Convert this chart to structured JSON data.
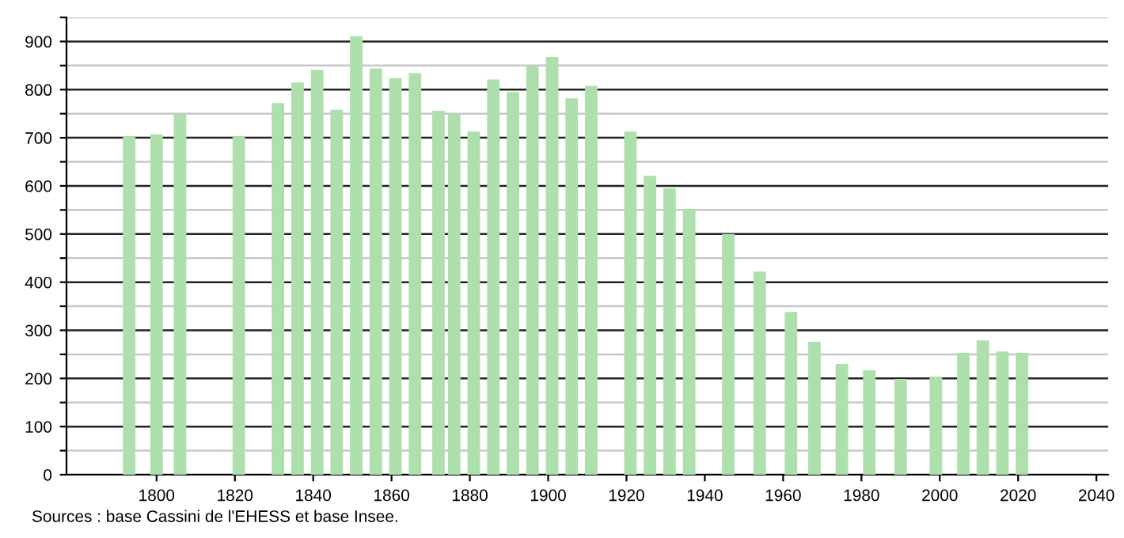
{
  "chart_data": {
    "type": "bar",
    "x": [
      1793,
      1800,
      1806,
      1821,
      1831,
      1836,
      1841,
      1846,
      1851,
      1856,
      1861,
      1866,
      1872,
      1876,
      1881,
      1886,
      1891,
      1896,
      1901,
      1906,
      1911,
      1921,
      1926,
      1931,
      1936,
      1946,
      1954,
      1962,
      1968,
      1975,
      1982,
      1990,
      1999,
      2006,
      2011,
      2016,
      2021
    ],
    "values": [
      703,
      707,
      749,
      703,
      772,
      815,
      841,
      758,
      911,
      844,
      824,
      834,
      756,
      749,
      713,
      821,
      795,
      849,
      868,
      782,
      808,
      713,
      621,
      595,
      551,
      500,
      422,
      338,
      276,
      230,
      217,
      199,
      204,
      253,
      279,
      256,
      253
    ],
    "color": "#aee0ae",
    "xlim": [
      1777,
      2043
    ],
    "xticks": [
      1800,
      1820,
      1840,
      1860,
      1880,
      1900,
      1920,
      1940,
      1960,
      1980,
      2000,
      2020,
      2040
    ],
    "ylim": [
      0,
      950
    ],
    "yticks": [
      0,
      {
        "value": 50,
        "label": null
      },
      100,
      {
        "value": 150,
        "label": null
      },
      200,
      {
        "value": 250,
        "label": null
      },
      300,
      {
        "value": 350,
        "label": null
      },
      400,
      {
        "value": 450,
        "label": null
      },
      500,
      {
        "value": 550,
        "label": null
      },
      600,
      {
        "value": 650,
        "label": null
      },
      700,
      {
        "value": 750,
        "label": null
      },
      800,
      {
        "value": 850,
        "label": null
      },
      900,
      {
        "value": 950,
        "label": null
      }
    ],
    "grid": "y",
    "annotations": [
      "Sources : base Cassini de l'EHESS et base Insee."
    ]
  }
}
